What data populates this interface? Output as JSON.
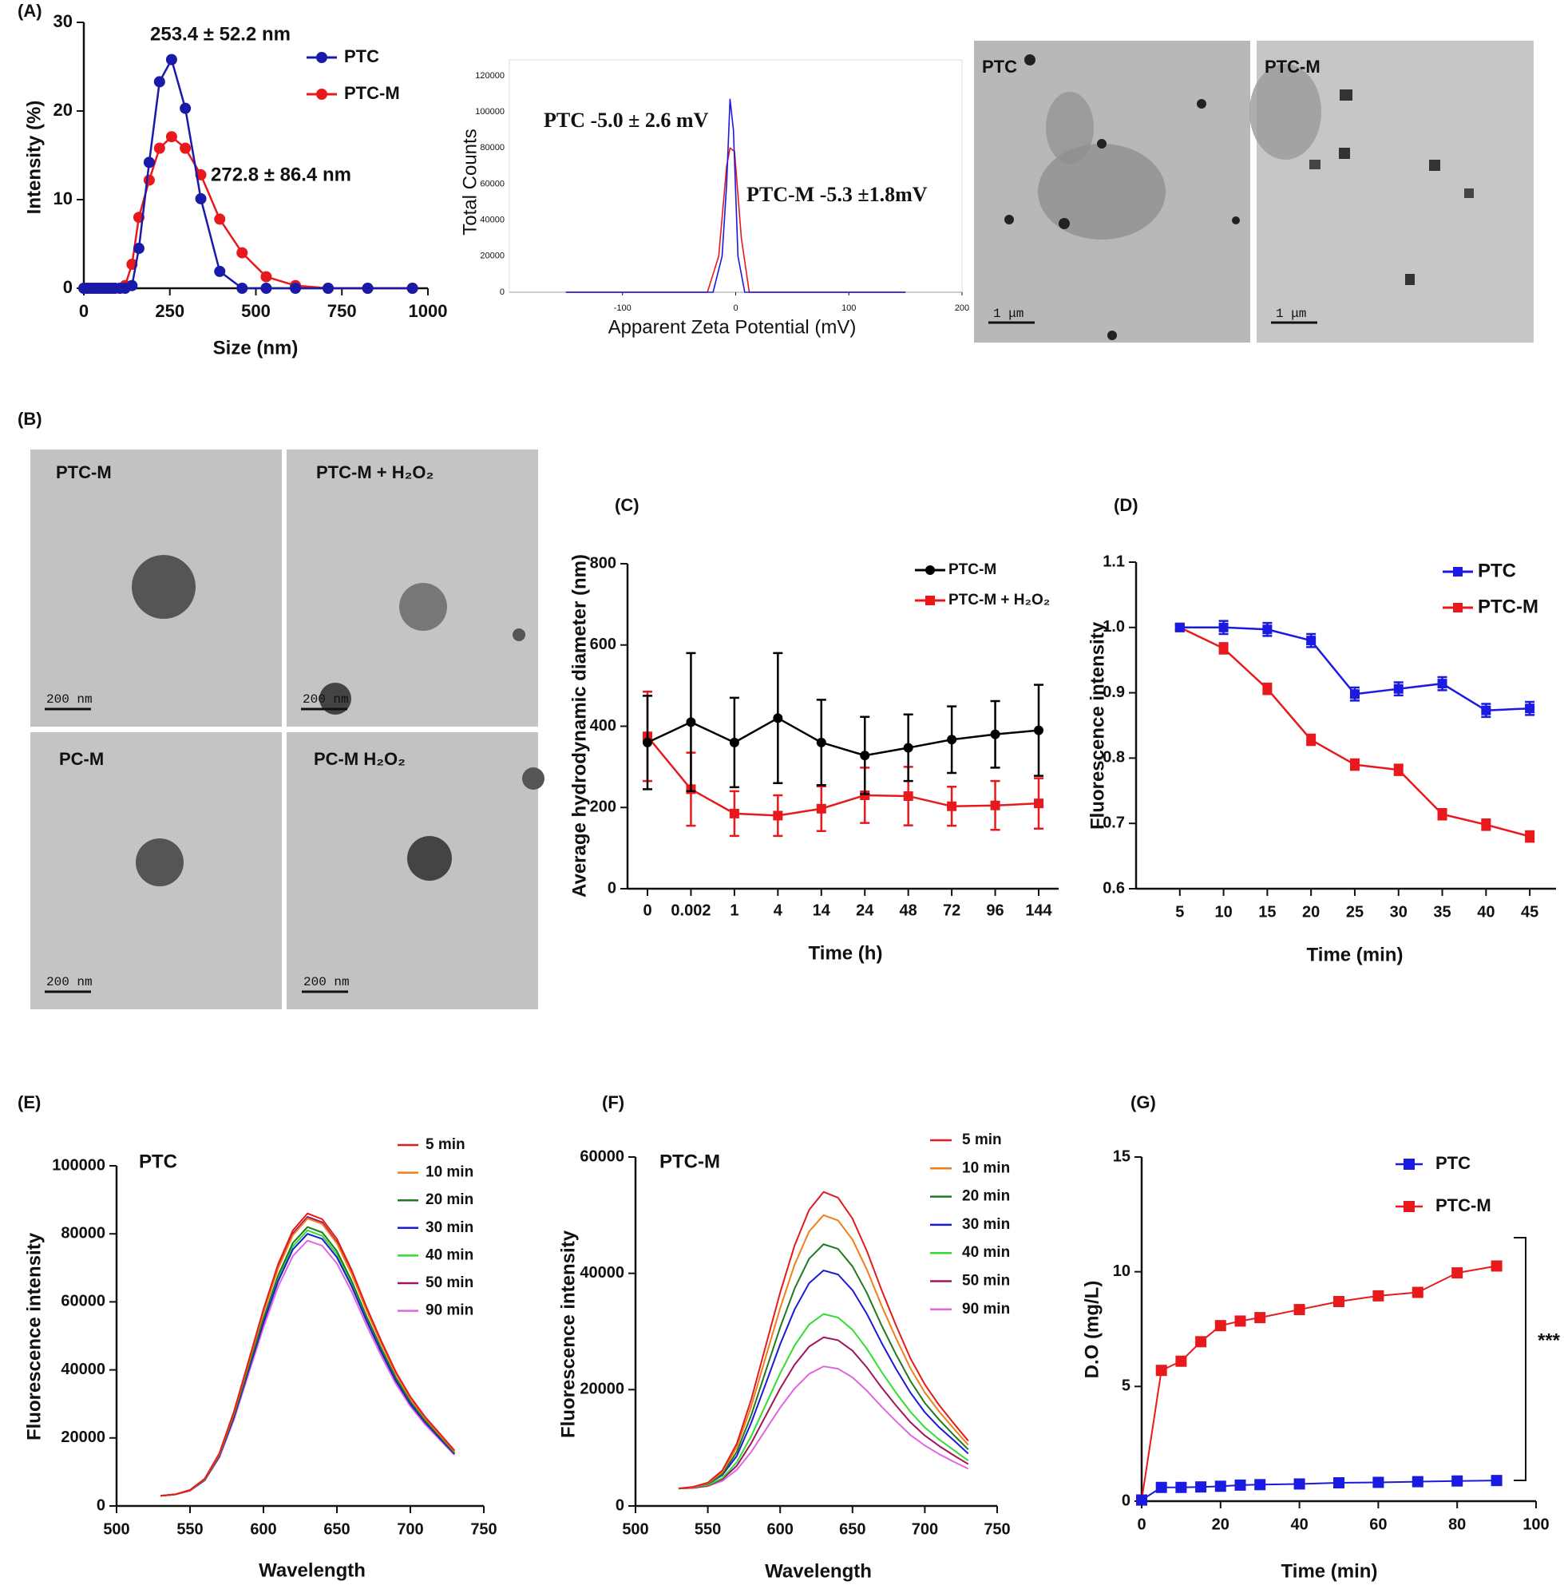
{
  "panel_labels": [
    "(A)",
    "(B)",
    "(C)",
    "(D)",
    "(E)",
    "(F)",
    "(G)"
  ],
  "images": [
    {
      "label": "PTC",
      "scale_bar": "1 μm"
    },
    {
      "label": "PTC-M",
      "scale_bar": "1 μm"
    },
    {
      "label": "PTC-M",
      "scale_bar": "200 nm"
    },
    {
      "label": "PTC-M + H₂O₂",
      "scale_bar": "200 nm"
    },
    {
      "label": "PC-M",
      "scale_bar": "200 nm"
    },
    {
      "label": "PC-M H₂O₂",
      "scale_bar": "200 nm"
    }
  ],
  "chart_data": [
    {
      "type": "line",
      "xlabel": "Size (nm)",
      "ylabel": "Intensity (%)",
      "annotations": [
        "253.4 ± 52.2 nm",
        "272.8 ± 86.4 nm"
      ],
      "x": [
        0,
        10,
        20,
        30,
        40,
        50,
        60,
        70,
        80,
        90,
        105,
        120,
        140,
        160,
        190,
        220,
        255,
        295,
        340,
        395,
        460,
        530,
        615,
        710,
        825,
        955
      ],
      "series": [
        {
          "name": "PTC",
          "color": "#1a1aa8",
          "marker": "circle",
          "values": [
            0,
            0,
            0,
            0,
            0,
            0,
            0,
            0,
            0,
            0,
            0,
            0,
            0.3,
            4.5,
            14.2,
            23.3,
            25.8,
            20.3,
            10.1,
            1.9,
            0,
            0,
            0,
            0,
            0,
            0
          ]
        },
        {
          "name": "PTC-M",
          "color": "#e8191c",
          "marker": "circle",
          "values": [
            0,
            0,
            0,
            0,
            0,
            0,
            0,
            0,
            0,
            0,
            0,
            0.3,
            2.7,
            8,
            12.2,
            15.8,
            17.1,
            15.8,
            12.8,
            7.8,
            4,
            1.3,
            0.3,
            0,
            0,
            0
          ]
        }
      ],
      "xlim": [
        0,
        1000
      ],
      "xticks": [
        0,
        250,
        500,
        750,
        1000
      ],
      "ylim": [
        0,
        30
      ],
      "yticks": [
        0,
        10,
        20,
        30
      ]
    },
    {
      "type": "line",
      "xlabel": "Apparent Zeta Potential (mV)",
      "ylabel": "Total Counts",
      "annotations": [
        "PTC  -5.0 ± 2.6 mV",
        "PTC-M -5.3 ±1.8mV"
      ],
      "series": [
        {
          "name": "PTC",
          "color": "#1a1ae0",
          "x": [
            -150,
            -20,
            -12,
            -8,
            -5,
            -2,
            2,
            8,
            150
          ],
          "values": [
            0,
            0,
            20000,
            60000,
            107000,
            90000,
            20000,
            0,
            0
          ]
        },
        {
          "name": "PTC-M",
          "color": "#e8191c",
          "x": [
            -150,
            -25,
            -15,
            -8,
            -5,
            -1,
            5,
            12,
            150
          ],
          "values": [
            0,
            0,
            20000,
            70000,
            80000,
            78000,
            30000,
            0,
            0
          ]
        }
      ],
      "xlim": [
        -200,
        200
      ],
      "xticks": [
        -100,
        0,
        100,
        200
      ],
      "ylim": [
        0,
        120000
      ],
      "yticks": [
        0,
        20000,
        40000,
        60000,
        80000,
        100000,
        120000
      ]
    },
    {
      "type": "line",
      "xlabel": "Time (h)",
      "ylabel": "Average hydrodynamic diameter (nm)",
      "categories": [
        "0",
        "0.002",
        "1",
        "4",
        "14",
        "24",
        "48",
        "72",
        "96",
        "144"
      ],
      "series": [
        {
          "name": "PTC-M",
          "color": "#000000",
          "marker": "circle",
          "values": [
            360,
            410,
            360,
            420,
            360,
            328,
            347,
            367,
            380,
            390
          ],
          "errors": [
            115,
            170,
            110,
            160,
            105,
            95,
            82,
            82,
            82,
            112
          ]
        },
        {
          "name": "PTC-M + H₂O₂",
          "color": "#e8191c",
          "marker": "square",
          "values": [
            375,
            245,
            185,
            180,
            197,
            230,
            228,
            203,
            205,
            210
          ],
          "errors": [
            110,
            90,
            55,
            50,
            55,
            68,
            72,
            48,
            60,
            62
          ]
        }
      ],
      "ylim": [
        0,
        800
      ],
      "yticks": [
        0,
        200,
        400,
        600,
        800
      ]
    },
    {
      "type": "line",
      "xlabel": "Time (min)",
      "ylabel": "Fluorescence intensity",
      "x": [
        5,
        10,
        15,
        20,
        25,
        30,
        35,
        40,
        45
      ],
      "series": [
        {
          "name": "PTC",
          "color": "#1a1ae0",
          "marker": "square",
          "values": [
            1.0,
            1.0,
            0.997,
            0.98,
            0.898,
            0.906,
            0.914,
            0.873,
            0.876
          ],
          "errors": [
            0.004,
            0.01,
            0.01,
            0.01,
            0.01,
            0.01,
            0.01,
            0.01,
            0.01
          ]
        },
        {
          "name": "PTC-M",
          "color": "#e8191c",
          "marker": "square",
          "values": [
            1.0,
            0.968,
            0.906,
            0.828,
            0.79,
            0.782,
            0.714,
            0.698,
            0.68
          ],
          "errors": [
            0.004,
            0.008,
            0.008,
            0.008,
            0.008,
            0.008,
            0.008,
            0.008,
            0.008
          ]
        }
      ],
      "xlim": [
        0,
        48
      ],
      "xticks": [
        5,
        10,
        15,
        20,
        25,
        30,
        35,
        40,
        45
      ],
      "ylim": [
        0.6,
        1.1
      ],
      "yticks": [
        0.6,
        0.7,
        0.8,
        0.9,
        {
          "value": 1,
          "label": "1.0"
        },
        1.1
      ]
    },
    {
      "type": "line",
      "xlabel": "Wavelength",
      "ylabel": "Fluorescence intensity",
      "annotations": [
        "PTC"
      ],
      "x": [
        530,
        540,
        550,
        560,
        570,
        580,
        590,
        600,
        610,
        620,
        630,
        640,
        650,
        660,
        670,
        680,
        690,
        700,
        710,
        720,
        730
      ],
      "series": [
        {
          "name": "5 min",
          "color": "#e41a1c",
          "values": [
            3000,
            3400,
            4700,
            8000,
            15500,
            27900,
            42800,
            57800,
            71100,
            81000,
            86000,
            84300,
            78500,
            69400,
            58600,
            48700,
            39500,
            32100,
            26200,
            21300,
            16300
          ]
        },
        {
          "name": "10 min",
          "color": "#f07f1a",
          "values": [
            3000,
            3400,
            4600,
            7900,
            15200,
            27500,
            42100,
            56800,
            69800,
            79600,
            84500,
            82900,
            77200,
            68200,
            57600,
            47800,
            38900,
            31500,
            25800,
            20900,
            16000
          ]
        },
        {
          "name": "20 min",
          "color": "#1f7a1f",
          "values": [
            3000,
            3400,
            4600,
            7700,
            14900,
            26700,
            40900,
            55100,
            67800,
            77300,
            82000,
            80400,
            74900,
            66200,
            55900,
            46500,
            37800,
            30700,
            25100,
            20400,
            15600
          ]
        },
        {
          "name": "30 min",
          "color": "#1a1ad6",
          "values": [
            3000,
            3400,
            4500,
            7600,
            14600,
            26100,
            40000,
            53800,
            66100,
            75400,
            80000,
            78500,
            73100,
            64600,
            54600,
            45400,
            36900,
            30000,
            24600,
            19900,
            15300
          ]
        },
        {
          "name": "40 min",
          "color": "#33dd33",
          "values": [
            3000,
            3400,
            4600,
            7700,
            14700,
            26400,
            40400,
            54500,
            67000,
            76300,
            81000,
            79400,
            74000,
            65400,
            55300,
            45900,
            37300,
            30300,
            24800,
            20200,
            15500
          ]
        },
        {
          "name": "50 min",
          "color": "#a0145a",
          "values": [
            3000,
            3400,
            4600,
            7900,
            15300,
            27600,
            42400,
            57100,
            70200,
            80100,
            85000,
            83400,
            77600,
            68600,
            57900,
            48100,
            39100,
            31700,
            26000,
            21000,
            16100
          ]
        },
        {
          "name": "90 min",
          "color": "#e066e0",
          "values": [
            3000,
            3400,
            4500,
            7500,
            14300,
            25500,
            39000,
            52500,
            64500,
            73500,
            78000,
            76500,
            71300,
            63000,
            53300,
            44300,
            36000,
            29300,
            24000,
            19500,
            15000
          ]
        }
      ],
      "xlim": [
        500,
        750
      ],
      "xticks": [
        500,
        550,
        600,
        650,
        700,
        750
      ],
      "ylim": [
        0,
        100000
      ],
      "yticks": [
        0,
        20000,
        40000,
        60000,
        80000,
        100000
      ]
    },
    {
      "type": "line",
      "xlabel": "Wavelength",
      "ylabel": "Fluorescence intensity",
      "annotations": [
        "PTC-M"
      ],
      "x": [
        530,
        540,
        550,
        560,
        570,
        580,
        590,
        600,
        610,
        620,
        630,
        640,
        650,
        660,
        670,
        680,
        690,
        700,
        710,
        720,
        730
      ],
      "series": [
        {
          "name": "5 min",
          "color": "#e41a1c",
          "values": [
            3000,
            3300,
            4000,
            6100,
            10700,
            18300,
            27500,
            36700,
            44800,
            50900,
            54000,
            53000,
            49400,
            43800,
            37200,
            31100,
            25400,
            20900,
            17300,
            14200,
            11200
          ]
        },
        {
          "name": "10 min",
          "color": "#f07f1a",
          "values": [
            3000,
            3200,
            3900,
            5800,
            10100,
            17100,
            25600,
            34000,
            41500,
            47200,
            50000,
            49100,
            45800,
            40600,
            34500,
            28900,
            23700,
            19500,
            16200,
            13300,
            10500
          ]
        },
        {
          "name": "20 min",
          "color": "#1f7a1f",
          "values": [
            3000,
            3200,
            3800,
            5500,
            9300,
            15600,
            23200,
            30700,
            37400,
            42500,
            45000,
            44200,
            41200,
            36600,
            31100,
            26100,
            21500,
            17700,
            14800,
            12200,
            9700
          ]
        },
        {
          "name": "30 min",
          "color": "#1a1ad6",
          "values": [
            3000,
            3200,
            3800,
            5300,
            8600,
            14300,
            21000,
            27800,
            33800,
            38300,
            40500,
            39800,
            37100,
            33000,
            28100,
            23600,
            19500,
            16100,
            13500,
            11300,
            9000
          ]
        },
        {
          "name": "40 min",
          "color": "#33dd33",
          "values": [
            3000,
            3200,
            3600,
            4800,
            7500,
            12000,
            17400,
            22800,
            27600,
            31200,
            33000,
            32400,
            30300,
            27000,
            23100,
            19500,
            16200,
            13500,
            11400,
            9600,
            7800
          ]
        },
        {
          "name": "50 min",
          "color": "#a0145a",
          "values": [
            3000,
            3100,
            3500,
            4600,
            6900,
            10800,
            15500,
            20200,
            24300,
            27400,
            29000,
            28500,
            26700,
            23800,
            20400,
            17300,
            14400,
            12100,
            10300,
            8700,
            7200
          ]
        },
        {
          "name": "90 min",
          "color": "#e066e0",
          "values": [
            3000,
            3100,
            3400,
            4300,
            6200,
            9300,
            13100,
            16900,
            20200,
            22700,
            24000,
            23600,
            22100,
            19800,
            17100,
            14600,
            12200,
            10400,
            8900,
            7600,
            6400
          ]
        }
      ],
      "xlim": [
        500,
        750
      ],
      "xticks": [
        500,
        550,
        600,
        650,
        700,
        750
      ],
      "ylim": [
        0,
        60000
      ],
      "yticks": [
        0,
        20000,
        40000,
        60000
      ]
    },
    {
      "type": "line",
      "xlabel": "Time (min)",
      "ylabel": "D.O (mg/L)",
      "annotations": [
        "***"
      ],
      "x": [
        0,
        5,
        10,
        15,
        20,
        25,
        30,
        40,
        50,
        60,
        70,
        80,
        90
      ],
      "series": [
        {
          "name": "PTC",
          "color": "#1a1ae0",
          "marker": "square",
          "values": [
            0.05,
            0.6,
            0.6,
            0.62,
            0.65,
            0.7,
            0.72,
            0.75,
            0.8,
            0.82,
            0.85,
            0.88,
            0.9
          ]
        },
        {
          "name": "PTC-M",
          "color": "#e8191c",
          "marker": "square",
          "values": [
            0.05,
            5.7,
            6.1,
            6.95,
            7.65,
            7.85,
            8.0,
            8.35,
            8.7,
            8.95,
            9.1,
            9.95,
            10.25
          ]
        }
      ],
      "xlim": [
        0,
        100
      ],
      "xticks": [
        0,
        20,
        40,
        60,
        80,
        100
      ],
      "ylim": [
        0,
        15
      ],
      "yticks": [
        0,
        5,
        10,
        15
      ]
    }
  ]
}
